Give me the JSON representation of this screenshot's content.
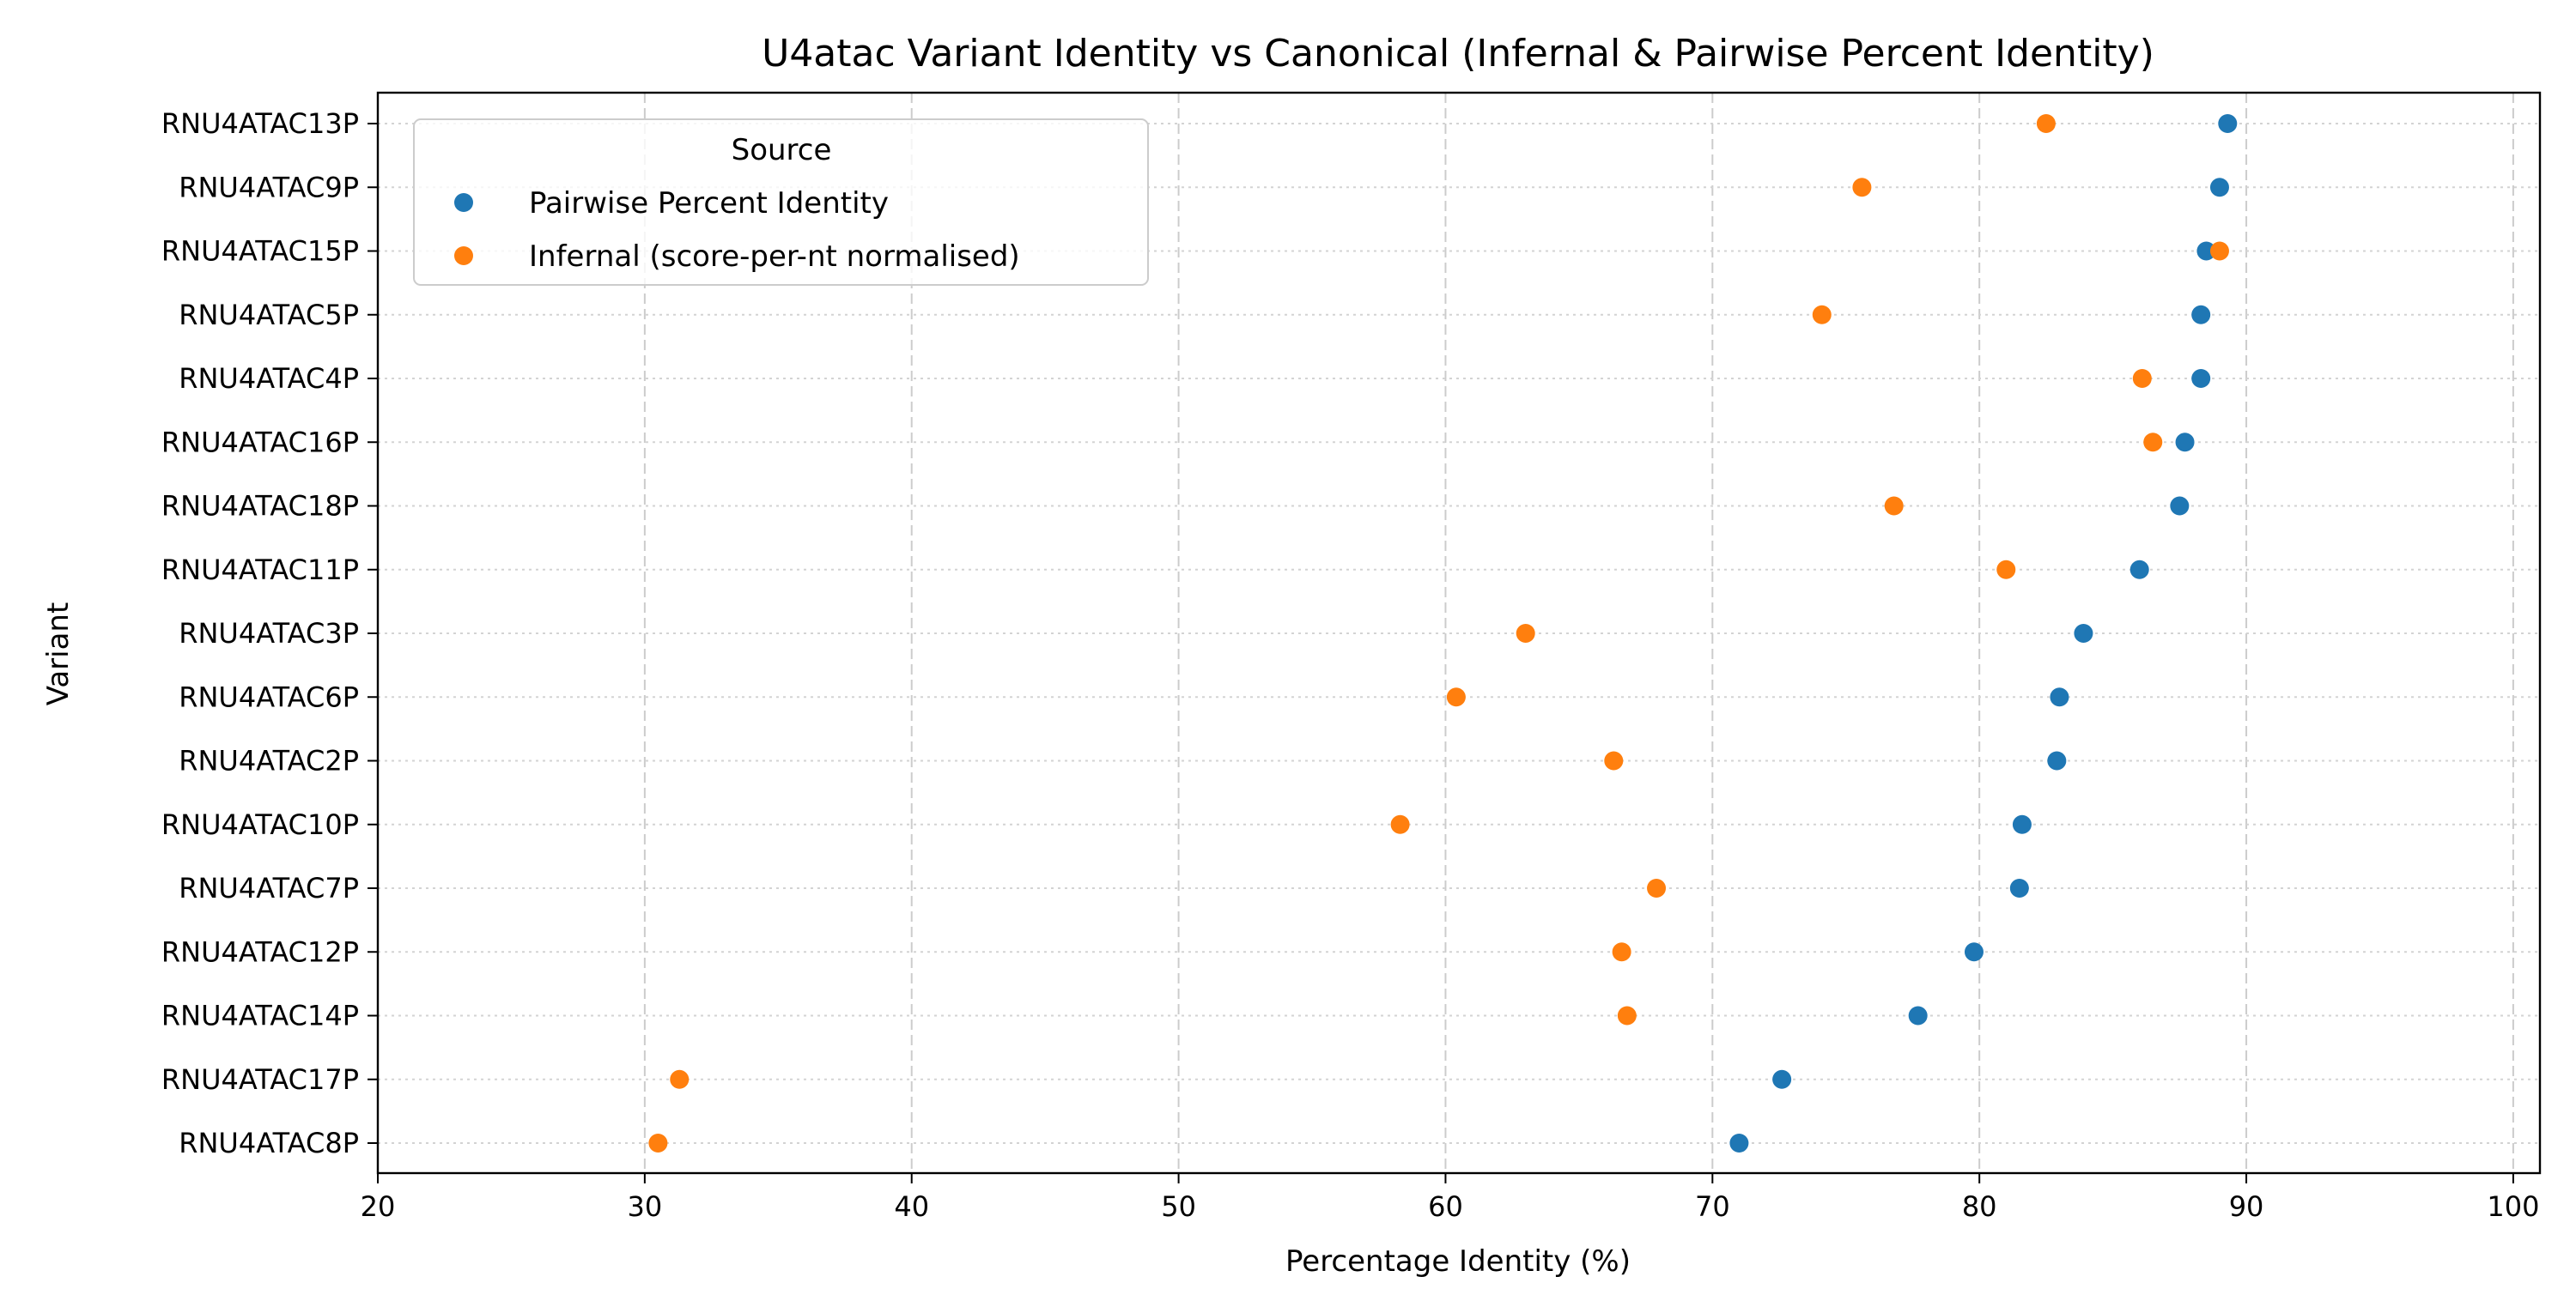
{
  "chart_data": {
    "type": "scatter",
    "title": "U4atac Variant Identity vs Canonical (Infernal & Pairwise Percent Identity)",
    "xlabel": "Percentage Identity (%)",
    "ylabel": "Variant",
    "xlim": [
      20,
      101
    ],
    "x_ticks": [
      20,
      30,
      40,
      50,
      60,
      70,
      80,
      90,
      100
    ],
    "grid": true,
    "legend": {
      "title": "Source",
      "placement": "top-left"
    },
    "categories": [
      "RNU4ATAC13P",
      "RNU4ATAC9P",
      "RNU4ATAC15P",
      "RNU4ATAC5P",
      "RNU4ATAC4P",
      "RNU4ATAC16P",
      "RNU4ATAC18P",
      "RNU4ATAC11P",
      "RNU4ATAC3P",
      "RNU4ATAC6P",
      "RNU4ATAC2P",
      "RNU4ATAC10P",
      "RNU4ATAC7P",
      "RNU4ATAC12P",
      "RNU4ATAC14P",
      "RNU4ATAC17P",
      "RNU4ATAC8P"
    ],
    "series": [
      {
        "name": "Pairwise Percent Identity",
        "color": "#1f77b4",
        "values": [
          89.3,
          89.0,
          88.5,
          88.3,
          88.3,
          87.7,
          87.5,
          86.0,
          83.9,
          83.0,
          82.9,
          81.6,
          81.5,
          79.8,
          77.7,
          72.6,
          71.0
        ]
      },
      {
        "name": "Infernal (score-per-nt normalised)",
        "color": "#ff7f0e",
        "values": [
          82.5,
          75.6,
          89.0,
          74.1,
          86.1,
          86.5,
          76.8,
          81.0,
          63.0,
          60.4,
          66.3,
          58.3,
          67.9,
          66.6,
          66.8,
          31.3,
          30.5
        ]
      }
    ]
  }
}
